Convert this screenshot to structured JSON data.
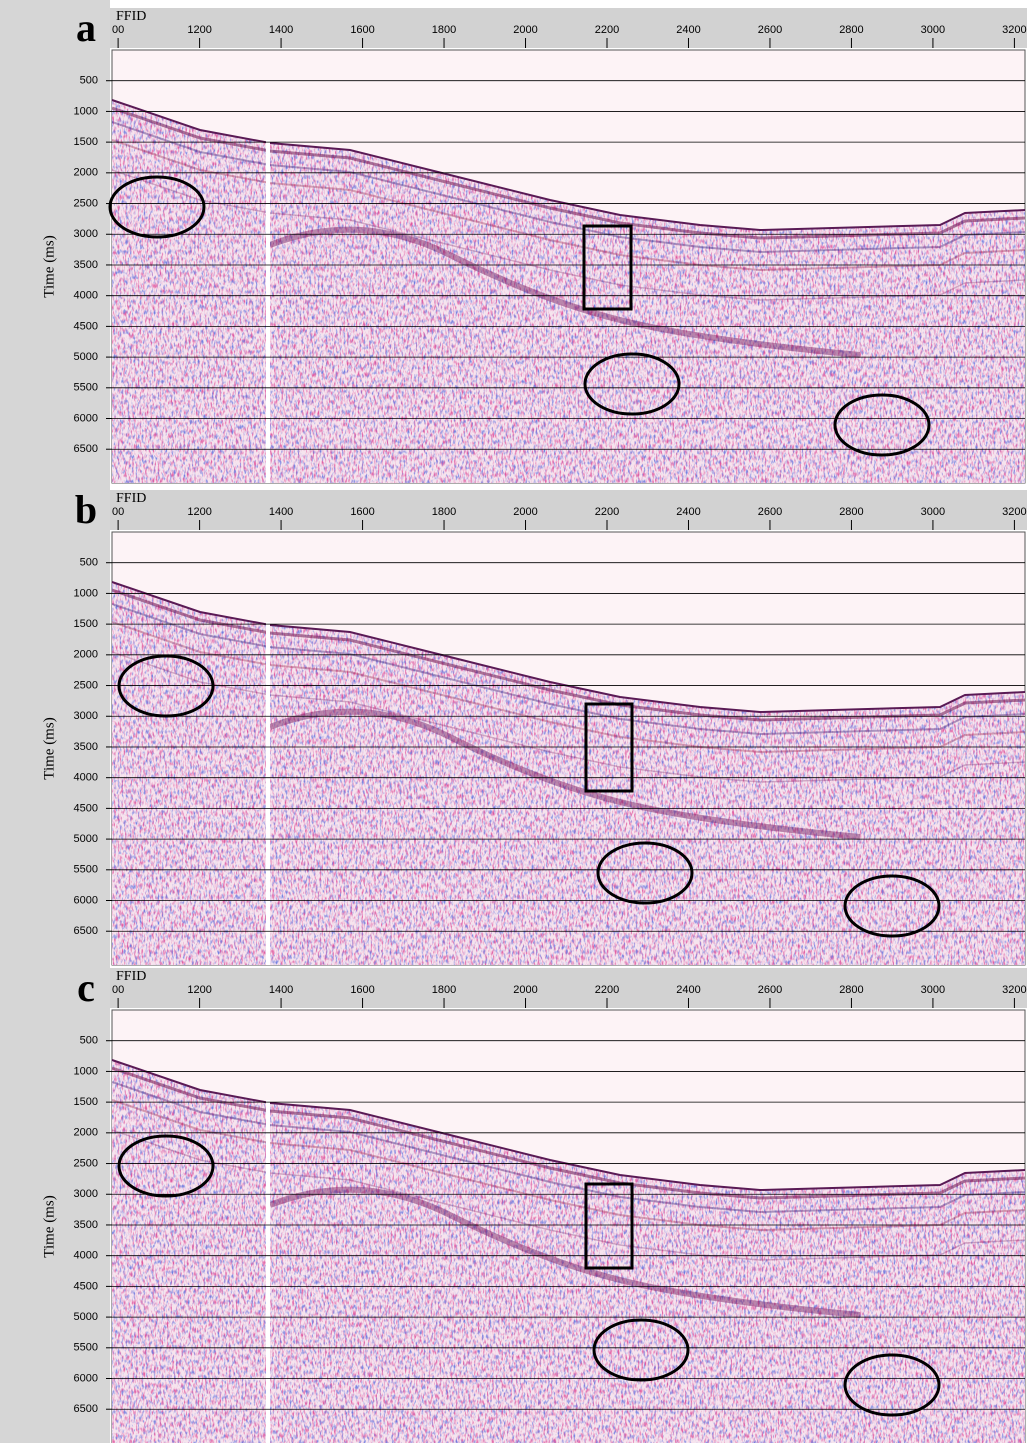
{
  "chart_data": [
    {
      "type": "seismic",
      "panel_label": "a",
      "x_label": "FFID",
      "y_label": "Time (ms)",
      "xlim": [
        985,
        3226
      ],
      "ylim": [
        0,
        7050
      ],
      "xticks": [
        {
          "value": 1000,
          "label": "00"
        },
        1200,
        1400,
        1600,
        1800,
        2000,
        2200,
        2400,
        2600,
        2800,
        3000,
        3200
      ],
      "yticks": [
        500,
        1000,
        1500,
        2000,
        2500,
        3000,
        3500,
        4000,
        4500,
        5000,
        5500,
        6000,
        6500
      ],
      "grid": true
    },
    {
      "type": "seismic",
      "panel_label": "b",
      "x_label": "FFID",
      "y_label": "Time (ms)",
      "xlim": [
        985,
        3226
      ],
      "ylim": [
        0,
        7050
      ],
      "xticks": [
        {
          "value": 1000,
          "label": "00"
        },
        1200,
        1400,
        1600,
        1800,
        2000,
        2200,
        2400,
        2600,
        2800,
        3000,
        3200
      ],
      "yticks": [
        500,
        1000,
        1500,
        2000,
        2500,
        3000,
        3500,
        4000,
        4500,
        5000,
        5500,
        6000,
        6500
      ],
      "grid": true
    },
    {
      "type": "seismic",
      "panel_label": "c",
      "x_label": "FFID",
      "y_label": "Time (ms)",
      "xlim": [
        985,
        3226
      ],
      "ylim": [
        0,
        7050
      ],
      "xticks": [
        {
          "value": 1000,
          "label": "00"
        },
        1200,
        1400,
        1600,
        1800,
        2000,
        2200,
        2400,
        2600,
        2800,
        3000,
        3200
      ],
      "yticks": [
        500,
        1000,
        1500,
        2000,
        2500,
        3000,
        3500,
        4000,
        4500,
        5000,
        5500,
        6000,
        6500
      ],
      "grid": true
    }
  ]
}
